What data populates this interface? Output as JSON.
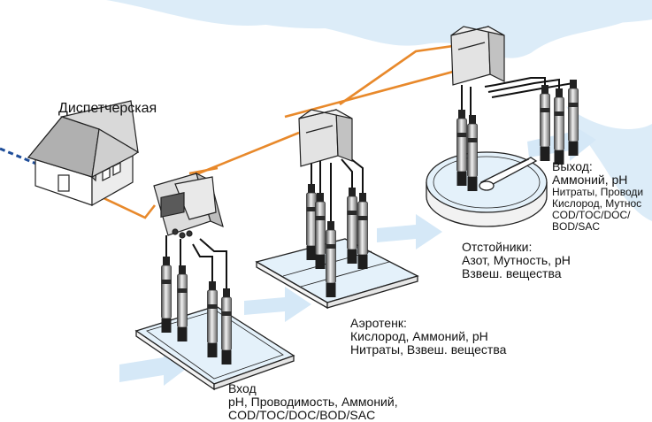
{
  "colors": {
    "water_flow": "#dcecf8",
    "water_arrow": "#d5e8f7",
    "network_line": "#e8892b",
    "signal_line": "#111111",
    "remote_link": "#1f4e9a",
    "tank_fill": "#e4f1fa"
  },
  "dispatch": {
    "label": "Диспетчерская"
  },
  "inlet": {
    "title": "Вход",
    "lines": [
      "pH, Проводимость, Аммоний,",
      "COD/TOC/DOC/BOD/SAC"
    ]
  },
  "aeration": {
    "title": "Аэротенк:",
    "lines": [
      "Кислород, Аммоний, pH",
      "Нитраты, Взвеш. вещества"
    ]
  },
  "settler": {
    "title": "Отстойники:",
    "lines": [
      "Азот, Мутность, pH",
      "Взвеш. вещества"
    ]
  },
  "outlet": {
    "title": "Выход:",
    "lines": [
      "Аммоний, pH",
      "Нитраты, Проводи",
      "Кислород, Мутнос",
      "COD/TOC/DOC/",
      "BOD/SAC"
    ]
  }
}
